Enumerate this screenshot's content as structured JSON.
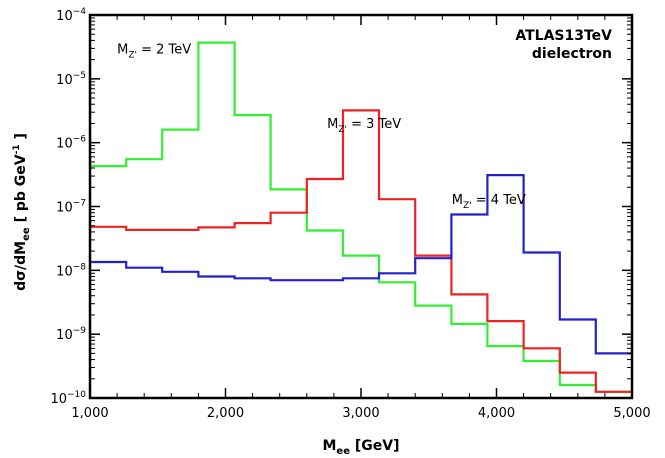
{
  "chart_data": {
    "type": "line",
    "step": true,
    "title": "ATLAS13TeV",
    "subtitle": "dielectron",
    "xlabel": {
      "main": "M",
      "sub": "ee",
      "rest": " [GeV]"
    },
    "ylabel": {
      "main": "dσ/dM",
      "sub": "ee",
      "rest": " [ pb GeV",
      "sup": "-1",
      "end": " ]"
    },
    "xlim": [
      1000,
      5000
    ],
    "ylim": [
      1e-10,
      0.0001
    ],
    "yscale": "log",
    "grid": false,
    "x_ticks": [
      1000,
      2000,
      3000,
      4000,
      5000
    ],
    "x_tick_labels": [
      "1,000",
      "2,000",
      "3,000",
      "4,000",
      "5,000"
    ],
    "y_ticks": [
      1e-10,
      1e-09,
      1e-08,
      1e-07,
      1e-06,
      1e-05,
      0.0001
    ],
    "y_tick_labels": [
      {
        "base": "10",
        "exp": "−10"
      },
      {
        "base": "10",
        "exp": "−9"
      },
      {
        "base": "10",
        "exp": "−8"
      },
      {
        "base": "10",
        "exp": "−7"
      },
      {
        "base": "10",
        "exp": "−6"
      },
      {
        "base": "10",
        "exp": "−5"
      },
      {
        "base": "10",
        "exp": "−4"
      }
    ],
    "bin_edges": [
      1000,
      1267,
      1533,
      1800,
      2067,
      2333,
      2600,
      2867,
      3133,
      3400,
      3667,
      3933,
      4200,
      4467,
      4733,
      5000
    ],
    "series": [
      {
        "color": "#33ee33",
        "values": [
          4.3e-07,
          5.5e-07,
          1.6e-06,
          3.7e-05,
          2.7e-06,
          1.85e-07,
          4.2e-08,
          1.7e-08,
          6.5e-09,
          2.8e-09,
          1.45e-09,
          6.5e-10,
          3.8e-10,
          1.6e-10,
          1.25e-10
        ]
      },
      {
        "color": "#ee2222",
        "values": [
          4.8e-08,
          4.3e-08,
          4.3e-08,
          4.7e-08,
          5.5e-08,
          8e-08,
          2.7e-07,
          3.2e-06,
          1.3e-07,
          1.7e-08,
          4.2e-09,
          1.6e-09,
          6e-10,
          2.5e-10,
          1.25e-10
        ]
      },
      {
        "color": "#2222cc",
        "values": [
          1.35e-08,
          1.1e-08,
          9.5e-09,
          8e-09,
          7.5e-09,
          7e-09,
          7e-09,
          7.5e-09,
          9e-09,
          1.55e-08,
          7.5e-08,
          3.1e-07,
          1.9e-08,
          1.7e-09,
          5e-10
        ]
      }
    ],
    "annotations": [
      {
        "main": "M",
        "sub": "Z'",
        "rest": " = 2 TeV",
        "x": 1200,
        "y": 2.5e-05
      },
      {
        "main": "M",
        "sub": "Z'",
        "rest": " = 3 TeV",
        "x": 2750,
        "y": 1.7e-06
      },
      {
        "main": "M",
        "sub": "Z'",
        "rest": " = 4 TeV",
        "x": 3670,
        "y": 1.1e-07
      }
    ]
  }
}
